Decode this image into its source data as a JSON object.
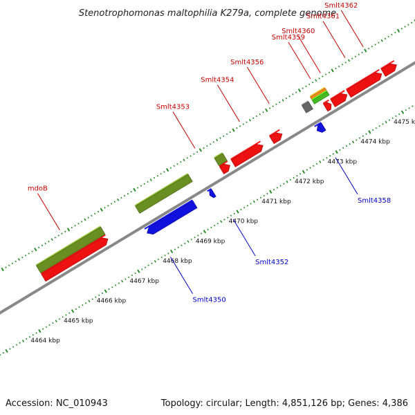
{
  "title": "Stenotrophomonas maltophilia K279a, complete genome",
  "footer": {
    "accession": "Accession: NC_010943",
    "topology": "Topology: circular; Length: 4,851,126 bp; Genes: 4,386"
  },
  "colors": {
    "forward_cds": "#ee1111",
    "reverse_cds": "#1111dd",
    "olive_feature": "#6b8e23",
    "gray_feature": "#666666",
    "orange_feature": "#f28c1e",
    "green_feature": "#44bb22",
    "backbone": "#888888",
    "ticks": "#2a8a2a",
    "forward_label": "#cc0000",
    "reverse_label": "#0000cc"
  },
  "scale_labels": [
    "4464 kbp",
    "4465 kbp",
    "4466 kbp",
    "4467 kbp",
    "4468 kbp",
    "4469 kbp",
    "4470 kbp",
    "4471 kbp",
    "4472 kbp",
    "4473 kbp",
    "4474 kbp",
    "4475 kbp"
  ],
  "forward_labels": [
    {
      "text": "mdoB",
      "kbp": 4465.8
    },
    {
      "text": "Smlt4353",
      "kbp": 4469.9
    },
    {
      "text": "Smlt4354",
      "kbp": 4471.25
    },
    {
      "text": "Smlt4356",
      "kbp": 4472.15
    },
    {
      "text": "Smlt4359",
      "kbp": 4473.4
    },
    {
      "text": "Smlt4360",
      "kbp": 4473.7
    },
    {
      "text": "Smlt4361",
      "kbp": 4474.45
    },
    {
      "text": "Smlt4362",
      "kbp": 4475.0
    }
  ],
  "reverse_labels": [
    {
      "text": "Smlt4350",
      "kbp": 4467.9
    },
    {
      "text": "Smlt4352",
      "kbp": 4469.8
    },
    {
      "text": "Smlt4358",
      "kbp": 4472.9
    }
  ],
  "features": [
    {
      "name": "mdoB",
      "kind": "forward_cds",
      "start": 4464.8,
      "end": 4466.75
    },
    {
      "name": "Smlt4353",
      "kind": "forward_cds",
      "start": 4470.2,
      "end": 4470.45
    },
    {
      "name": "Smlt4354",
      "kind": "forward_cds",
      "start": 4470.55,
      "end": 4471.45
    },
    {
      "name": "Smlt4356",
      "kind": "forward_cds",
      "start": 4471.72,
      "end": 4472.03
    },
    {
      "name": "Smlt4359",
      "kind": "forward_cds",
      "start": 4473.35,
      "end": 4473.52
    },
    {
      "name": "Smlt4360",
      "kind": "forward_cds",
      "start": 4473.57,
      "end": 4474.0
    },
    {
      "name": "Smlt4361",
      "kind": "forward_cds",
      "start": 4474.05,
      "end": 4475.05
    },
    {
      "name": "Smlt4362",
      "kind": "forward_cds",
      "start": 4475.1,
      "end": 4475.5
    },
    {
      "name": "Smlt4350",
      "kind": "reverse_cds",
      "start": 4467.7,
      "end": 4469.15
    },
    {
      "name": "Smlt4352",
      "kind": "reverse_cds",
      "start": 4469.6,
      "end": 4469.72
    },
    {
      "name": "Smlt4358",
      "kind": "reverse_cds",
      "start": 4472.85,
      "end": 4473.05
    },
    {
      "name": "mdoB-gene",
      "kind": "olive_feature",
      "start": 4464.8,
      "end": 4466.75
    },
    {
      "name": "Smlt4350-gene",
      "kind": "olive_feature",
      "start": 4467.8,
      "end": 4469.4
    },
    {
      "name": "Smlt4353-gene",
      "kind": "olive_feature",
      "start": 4470.2,
      "end": 4470.45
    },
    {
      "name": "Smlt4358-gene",
      "kind": "gray_feature",
      "start": 4472.85,
      "end": 4473.05
    },
    {
      "name": "Smlt4360-gene",
      "kind": "orange_feature",
      "start": 4473.15,
      "end": 4473.6
    },
    {
      "name": "Smlt4360-misc",
      "kind": "green_feature",
      "start": 4473.15,
      "end": 4473.6
    }
  ]
}
